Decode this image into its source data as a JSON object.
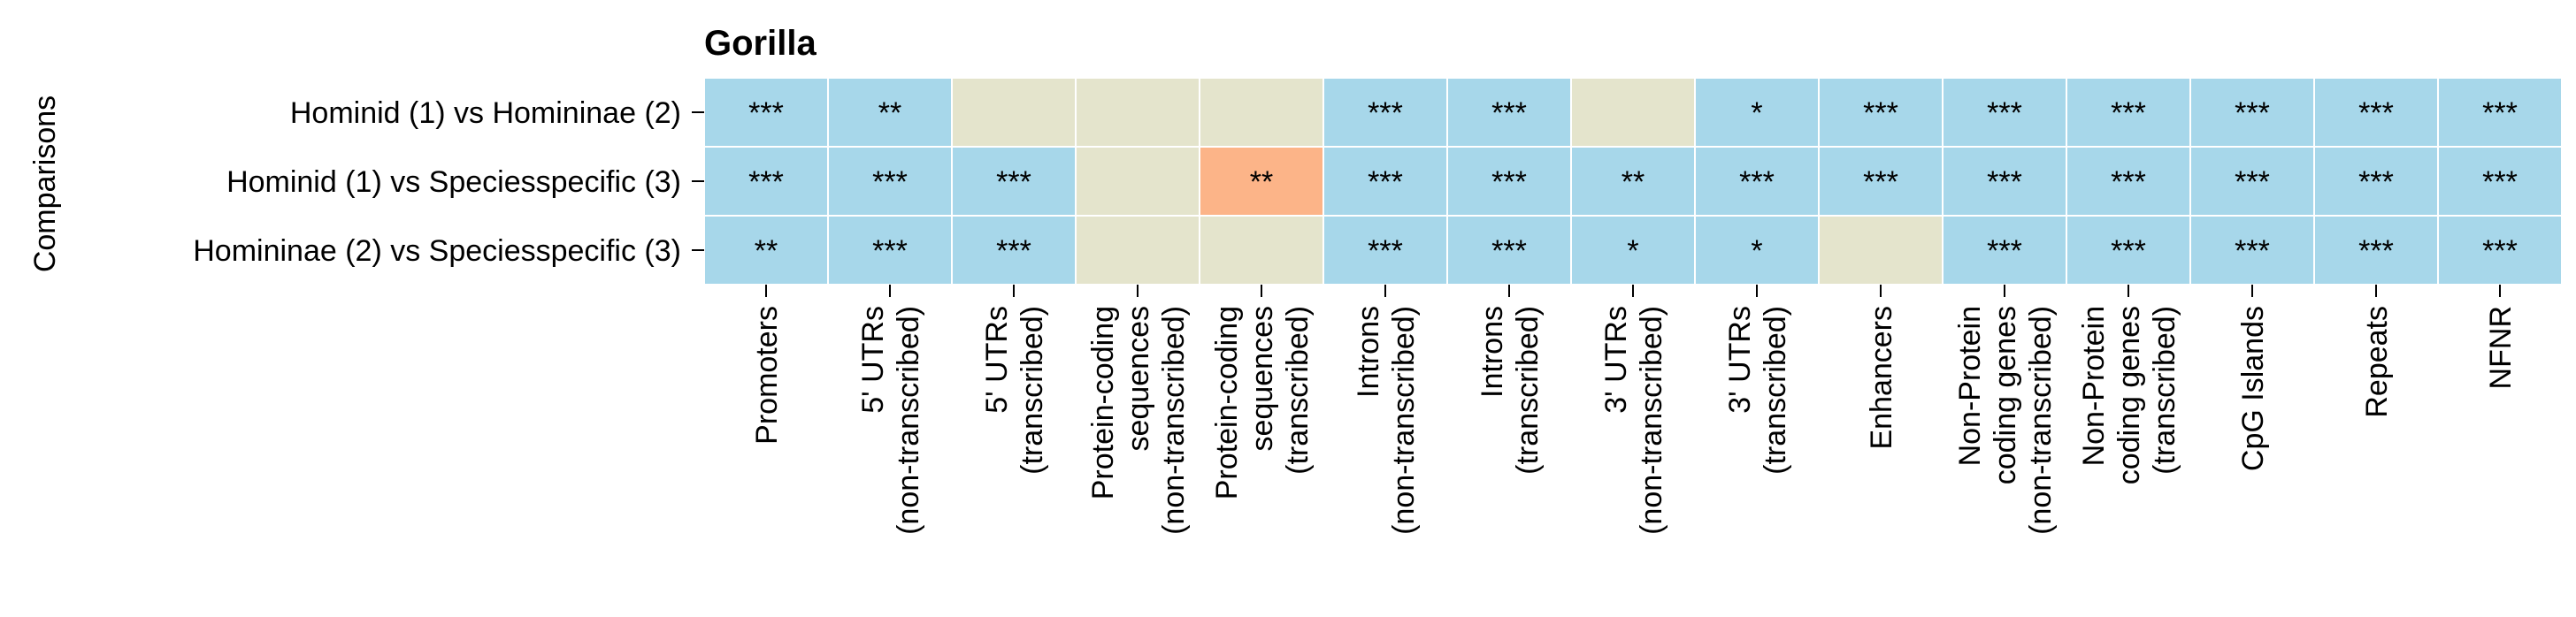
{
  "chart_data": {
    "type": "heatmap",
    "title": "Gorilla",
    "ylabel": "Comparisons",
    "xlabel": "",
    "rows": [
      "Hominid (1) vs Homininae (2)",
      "Hominid (1) vs Speciesspecific (3)",
      "Homininae (2) vs Speciesspecific (3)"
    ],
    "columns": [
      [
        "Promoters"
      ],
      [
        "5' UTRs",
        "(non-transcribed)"
      ],
      [
        "5' UTRs",
        "(transcribed)"
      ],
      [
        "Protein-coding",
        "sequences",
        "(non-transcribed)"
      ],
      [
        "Protein-coding",
        "sequences",
        "(transcribed)"
      ],
      [
        "Introns",
        "(non-transcribed)"
      ],
      [
        "Introns",
        "(transcribed)"
      ],
      [
        "3' UTRs",
        "(non-transcribed)"
      ],
      [
        "3' UTRs",
        "(transcribed)"
      ],
      [
        "Enhancers"
      ],
      [
        "Non-Protein",
        "coding genes",
        "(non-transcribed)"
      ],
      [
        "Non-Protein",
        "coding genes",
        "(transcribed)"
      ],
      [
        "CpG Islands"
      ],
      [
        "Repeats"
      ],
      [
        "NFNR"
      ]
    ],
    "cell_categories": [
      [
        "blue",
        "blue",
        "beige",
        "beige",
        "beige",
        "blue",
        "blue",
        "beige",
        "blue",
        "blue",
        "blue",
        "blue",
        "blue",
        "blue",
        "blue"
      ],
      [
        "blue",
        "blue",
        "blue",
        "beige",
        "orange",
        "blue",
        "blue",
        "blue",
        "blue",
        "blue",
        "blue",
        "blue",
        "blue",
        "blue",
        "blue"
      ],
      [
        "blue",
        "blue",
        "blue",
        "beige",
        "beige",
        "blue",
        "blue",
        "blue",
        "blue",
        "beige",
        "blue",
        "blue",
        "blue",
        "blue",
        "blue"
      ]
    ],
    "annotations": [
      [
        "***",
        "**",
        "",
        "",
        "",
        "***",
        "***",
        "",
        "*",
        "***",
        "***",
        "***",
        "***",
        "***",
        "***"
      ],
      [
        "***",
        "***",
        "***",
        "",
        "**",
        "***",
        "***",
        "**",
        "***",
        "***",
        "***",
        "***",
        "***",
        "***",
        "***"
      ],
      [
        "**",
        "***",
        "***",
        "",
        "",
        "***",
        "***",
        "*",
        "*",
        "",
        "***",
        "***",
        "***",
        "***",
        "***"
      ]
    ],
    "colors": {
      "blue": "#a7d7ea",
      "beige": "#e4e4cc",
      "orange": "#fcb488",
      "grid": "#ffffff"
    }
  }
}
